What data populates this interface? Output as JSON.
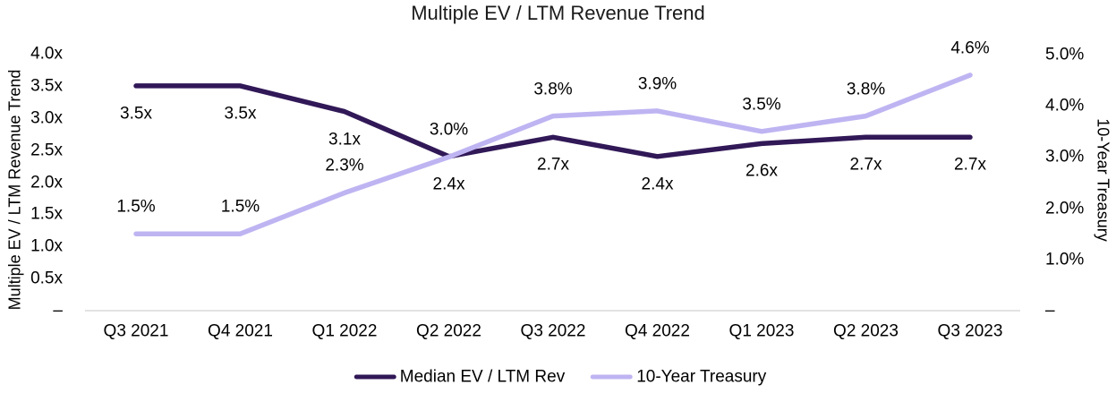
{
  "chart_data": {
    "type": "line",
    "title": "Multiple EV / LTM Revenue Trend",
    "categories": [
      "Q3 2021",
      "Q4 2021",
      "Q1 2022",
      "Q2 2022",
      "Q3 2022",
      "Q4 2022",
      "Q1 2023",
      "Q2 2023",
      "Q3 2023"
    ],
    "series": [
      {
        "name": "Median EV / LTM Rev",
        "axis": "left",
        "color": "#311857",
        "values": [
          3.5,
          3.5,
          3.1,
          2.4,
          2.7,
          2.4,
          2.6,
          2.7,
          2.7
        ],
        "labels": [
          "3.5x",
          "3.5x",
          "3.1x",
          "2.4x",
          "2.7x",
          "2.4x",
          "2.6x",
          "2.7x",
          "2.7x"
        ],
        "label_position": "below"
      },
      {
        "name": "10-Year Treasury",
        "axis": "right",
        "color": "#BFB4F2",
        "values": [
          1.5,
          1.5,
          2.3,
          3.0,
          3.8,
          3.9,
          3.5,
          3.8,
          4.6
        ],
        "labels": [
          "1.5%",
          "1.5%",
          "2.3%",
          "3.0%",
          "3.8%",
          "3.9%",
          "3.5%",
          "3.8%",
          "4.6%"
        ],
        "label_position": "above"
      }
    ],
    "left_axis": {
      "title": "Multiple EV / LTM Revenue Trend",
      "max": 4.0,
      "ticks": [
        {
          "label": "4.0x",
          "value": 4.0
        },
        {
          "label": "3.5x",
          "value": 3.5
        },
        {
          "label": "3.0x",
          "value": 3.0
        },
        {
          "label": "2.5x",
          "value": 2.5
        },
        {
          "label": "2.0x",
          "value": 2.0
        },
        {
          "label": "1.5x",
          "value": 1.5
        },
        {
          "label": "1.0x",
          "value": 1.0
        },
        {
          "label": "0.5x",
          "value": 0.5
        },
        {
          "label": "–",
          "value": 0
        }
      ]
    },
    "right_axis": {
      "title": "10-Year Treasury",
      "max": 5.0,
      "ticks": [
        {
          "label": "5.0%",
          "value": 5.0
        },
        {
          "label": "4.0%",
          "value": 4.0
        },
        {
          "label": "3.0%",
          "value": 3.0
        },
        {
          "label": "2.0%",
          "value": 2.0
        },
        {
          "label": "1.0%",
          "value": 1.0
        },
        {
          "label": "–",
          "value": 0
        }
      ]
    },
    "grid": false,
    "legend_position": "bottom",
    "axis_line_color": "#D9D9D9",
    "label_color": "#000000"
  }
}
